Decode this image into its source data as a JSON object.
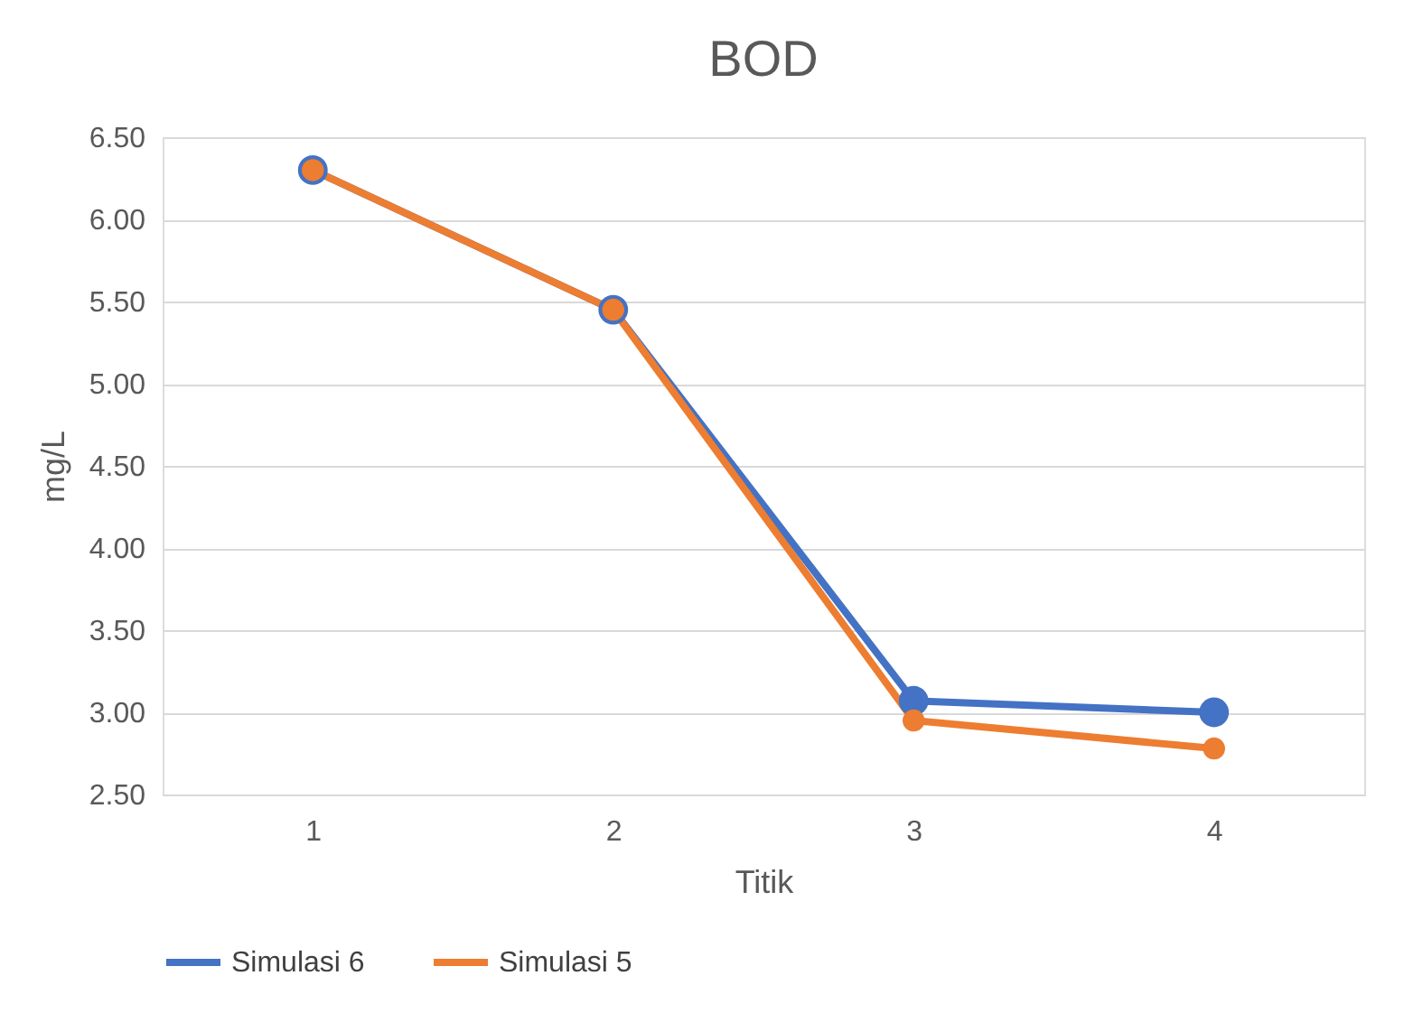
{
  "chart_data": {
    "type": "line",
    "title": "BOD",
    "xlabel": "Titik",
    "ylabel": "mg/L",
    "categories": [
      "1",
      "2",
      "3",
      "4"
    ],
    "series": [
      {
        "name": "Simulasi 6",
        "color": "#4472c4",
        "values": [
          6.3,
          5.45,
          3.07,
          3.0
        ]
      },
      {
        "name": "Simulasi 5",
        "color": "#ed7d31",
        "values": [
          6.3,
          5.45,
          2.95,
          2.78
        ]
      }
    ],
    "ylim": [
      2.5,
      6.5
    ],
    "yticks": [
      {
        "value": 2.5,
        "label": "2.50"
      },
      {
        "value": 3.0,
        "label": "3.00"
      },
      {
        "value": 3.5,
        "label": "3.50"
      },
      {
        "value": 4.0,
        "label": "4.00"
      },
      {
        "value": 4.5,
        "label": "4.50"
      },
      {
        "value": 5.0,
        "label": "5.00"
      },
      {
        "value": 5.5,
        "label": "5.50"
      },
      {
        "value": 6.0,
        "label": "6.00"
      },
      {
        "value": 6.5,
        "label": "6.50"
      }
    ],
    "grid": "y",
    "legend": "bottom",
    "marker": "circle",
    "line_style": "solid"
  }
}
